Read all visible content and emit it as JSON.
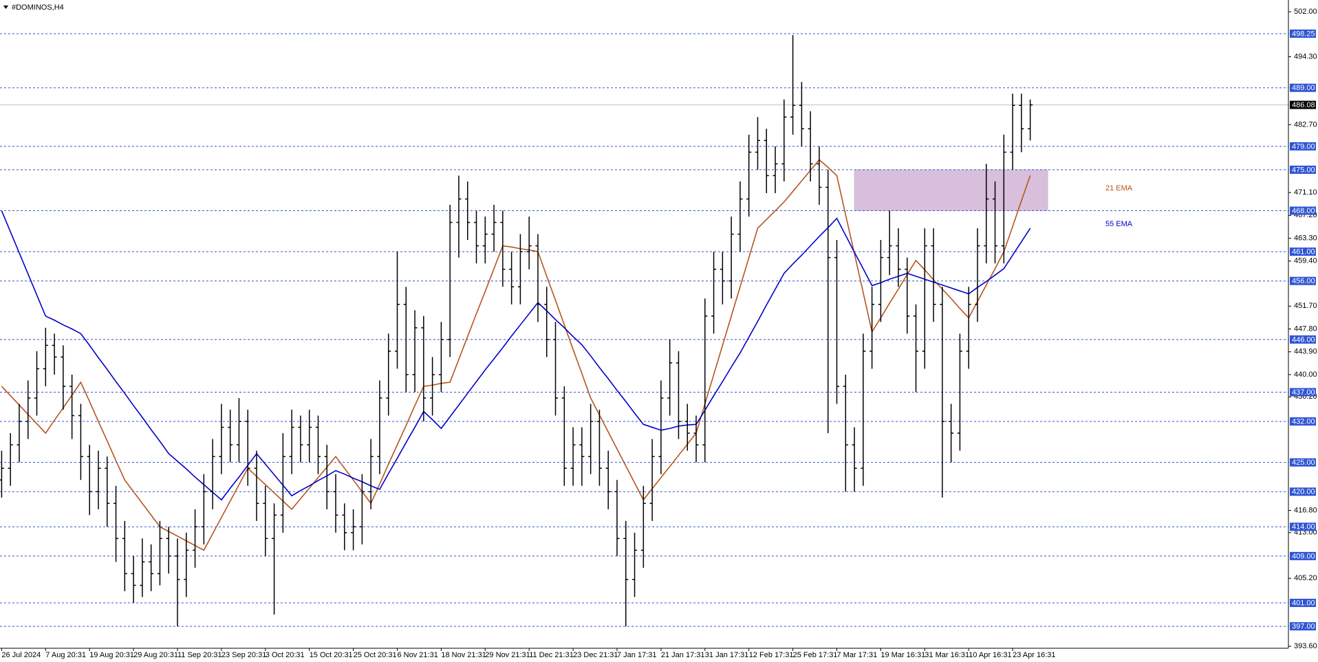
{
  "chart_data": {
    "type": "ohlc",
    "title": "#DOMINOS,H4",
    "categories": [
      "26 Jul 2024",
      null,
      null,
      null,
      null,
      "7 Aug 20:31",
      null,
      null,
      null,
      null,
      "19 Aug 20:31",
      null,
      null,
      null,
      null,
      "29 Aug 20:31",
      null,
      null,
      null,
      null,
      "11 Sep 20:31",
      null,
      null,
      null,
      null,
      "23 Sep 20:31",
      null,
      null,
      null,
      null,
      "3 Oct 20:31",
      null,
      null,
      null,
      null,
      "15 Oct 20:31",
      null,
      null,
      null,
      null,
      "25 Oct 20:31",
      null,
      null,
      null,
      null,
      "6 Nov 21:31",
      null,
      null,
      null,
      null,
      "18 Nov 21:31",
      null,
      null,
      null,
      null,
      "29 Nov 21:31",
      null,
      null,
      null,
      null,
      "11 Dec 21:31",
      null,
      null,
      null,
      null,
      "23 Dec 21:31",
      null,
      null,
      null,
      null,
      "7 Jan 17:31",
      null,
      null,
      null,
      null,
      "21 Jan 17:31",
      null,
      null,
      null,
      null,
      "31 Jan 17:31",
      null,
      null,
      null,
      null,
      "12 Feb 17:31",
      null,
      null,
      null,
      null,
      "25 Feb 17:31",
      null,
      null,
      null,
      null,
      "7 Mar 17:31",
      null,
      null,
      null,
      null,
      "19 Mar 16:31",
      null,
      null,
      null,
      null,
      "31 Mar 16:31",
      null,
      null,
      null,
      null,
      "10 Apr 16:31",
      null,
      null,
      null,
      null,
      "23 Apr 16:31",
      null,
      null
    ],
    "ohlc": [
      [
        422,
        427,
        419,
        424
      ],
      [
        424,
        430,
        421,
        428
      ],
      [
        428,
        435,
        425,
        432
      ],
      [
        432,
        439,
        429,
        436
      ],
      [
        436,
        444,
        433,
        441
      ],
      [
        441,
        448,
        438,
        445
      ],
      [
        445,
        447,
        440,
        443
      ],
      [
        443,
        445,
        434,
        438
      ],
      [
        438,
        440,
        429,
        433
      ],
      [
        433,
        435,
        422,
        426
      ],
      [
        426,
        428,
        416,
        420
      ],
      [
        420,
        427,
        417,
        424
      ],
      [
        424,
        426,
        414,
        418
      ],
      [
        418,
        421,
        408,
        412
      ],
      [
        412,
        415,
        403,
        406
      ],
      [
        406,
        409,
        401,
        404
      ],
      [
        404,
        412,
        402,
        408
      ],
      [
        408,
        411,
        403,
        406
      ],
      [
        406,
        415,
        404,
        412
      ],
      [
        412,
        414,
        406,
        409
      ],
      [
        409,
        412,
        397,
        405
      ],
      [
        405,
        413,
        402,
        410
      ],
      [
        410,
        417,
        407,
        414
      ],
      [
        414,
        423,
        411,
        420
      ],
      [
        420,
        429,
        417,
        426
      ],
      [
        426,
        435,
        423,
        431
      ],
      [
        431,
        434,
        425,
        428
      ],
      [
        428,
        436,
        425,
        432
      ],
      [
        432,
        434,
        421,
        424
      ],
      [
        424,
        427,
        415,
        418
      ],
      [
        418,
        421,
        409,
        412
      ],
      [
        412,
        418,
        399,
        416
      ],
      [
        416,
        430,
        413,
        426
      ],
      [
        426,
        434,
        423,
        431
      ],
      [
        431,
        433,
        425,
        428
      ],
      [
        428,
        434,
        425,
        431
      ],
      [
        431,
        433,
        423,
        426
      ],
      [
        426,
        428,
        417,
        420
      ],
      [
        420,
        423,
        413,
        416
      ],
      [
        416,
        418,
        410,
        413
      ],
      [
        413,
        417,
        410,
        414
      ],
      [
        414,
        423,
        411,
        420
      ],
      [
        420,
        429,
        417,
        426
      ],
      [
        426,
        439,
        423,
        436
      ],
      [
        436,
        447,
        433,
        444
      ],
      [
        444,
        461,
        441,
        452
      ],
      [
        452,
        455,
        437,
        440
      ],
      [
        440,
        451,
        437,
        448
      ],
      [
        448,
        450,
        432,
        436
      ],
      [
        436,
        443,
        433,
        440
      ],
      [
        440,
        449,
        437,
        446
      ],
      [
        446,
        469,
        443,
        466
      ],
      [
        466,
        474,
        460,
        470
      ],
      [
        470,
        473,
        463,
        466
      ],
      [
        466,
        468,
        459,
        462
      ],
      [
        462,
        467,
        459,
        464
      ],
      [
        464,
        469,
        461,
        466
      ],
      [
        466,
        468,
        455,
        458
      ],
      [
        458,
        461,
        452,
        455
      ],
      [
        455,
        464,
        452,
        461
      ],
      [
        461,
        467,
        458,
        462
      ],
      [
        462,
        464,
        449,
        452
      ],
      [
        452,
        455,
        443,
        446
      ],
      [
        446,
        449,
        433,
        436
      ],
      [
        436,
        438,
        421,
        424
      ],
      [
        424,
        431,
        421,
        428
      ],
      [
        428,
        431,
        421,
        426
      ],
      [
        426,
        435,
        423,
        432
      ],
      [
        432,
        434,
        421,
        424
      ],
      [
        424,
        427,
        417,
        420
      ],
      [
        420,
        422,
        409,
        412
      ],
      [
        412,
        415,
        397,
        405
      ],
      [
        405,
        413,
        402,
        410
      ],
      [
        410,
        421,
        407,
        418
      ],
      [
        418,
        429,
        415,
        426
      ],
      [
        426,
        439,
        423,
        436
      ],
      [
        436,
        446,
        433,
        442
      ],
      [
        442,
        444,
        429,
        432
      ],
      [
        432,
        435,
        427,
        430
      ],
      [
        430,
        433,
        425,
        428
      ],
      [
        428,
        453,
        425,
        450
      ],
      [
        450,
        461,
        447,
        458
      ],
      [
        458,
        461,
        452,
        456
      ],
      [
        456,
        467,
        453,
        464
      ],
      [
        464,
        473,
        461,
        470
      ],
      [
        470,
        481,
        467,
        478
      ],
      [
        478,
        484,
        475,
        480
      ],
      [
        480,
        482,
        471,
        474
      ],
      [
        474,
        479,
        471,
        476
      ],
      [
        476,
        487,
        473,
        484
      ],
      [
        484,
        498,
        481,
        486
      ],
      [
        486,
        490,
        479,
        482
      ],
      [
        482,
        485,
        473,
        476
      ],
      [
        476,
        479,
        469,
        472
      ],
      [
        472,
        475,
        430,
        460
      ],
      [
        460,
        463,
        435,
        438
      ],
      [
        438,
        440,
        420,
        428
      ],
      [
        428,
        431,
        420,
        424
      ],
      [
        424,
        447,
        421,
        444
      ],
      [
        444,
        455,
        441,
        452
      ],
      [
        452,
        463,
        449,
        460
      ],
      [
        460,
        468,
        457,
        462
      ],
      [
        462,
        465,
        455,
        458
      ],
      [
        458,
        460,
        447,
        450
      ],
      [
        450,
        452,
        437,
        444
      ],
      [
        444,
        465,
        441,
        462
      ],
      [
        462,
        465,
        449,
        452
      ],
      [
        452,
        455,
        419,
        432
      ],
      [
        432,
        435,
        425,
        430
      ],
      [
        430,
        447,
        427,
        444
      ],
      [
        444,
        455,
        441,
        452
      ],
      [
        452,
        465,
        449,
        462
      ],
      [
        462,
        476,
        459,
        470
      ],
      [
        470,
        473,
        459,
        462
      ],
      [
        462,
        481,
        459,
        478
      ],
      [
        478,
        488,
        475,
        486
      ],
      [
        486,
        488,
        478,
        482
      ],
      [
        482,
        487,
        480,
        486.08
      ]
    ],
    "bar_color": "#000000",
    "series": [
      {
        "name": "21 EMA",
        "color": "#b5541c",
        "values": [
          438,
          436.4,
          434.8,
          433.2,
          431.6,
          430,
          432.2,
          434.3,
          436.5,
          438.7,
          435.4,
          432,
          428.7,
          425.3,
          422,
          420,
          418,
          416,
          414,
          413.2,
          412.4,
          411.6,
          410.8,
          410,
          412.8,
          415.6,
          418.4,
          421.2,
          424,
          422.6,
          421.2,
          419.8,
          418.4,
          417,
          418.8,
          420.6,
          422.4,
          424.2,
          426,
          424,
          422,
          420,
          418,
          421.3,
          424.7,
          428,
          431.3,
          434.7,
          438,
          438.2,
          438.5,
          438.7,
          442.6,
          446.5,
          450.4,
          454.2,
          458.1,
          462,
          461.8,
          461.5,
          461.3,
          461,
          456.8,
          452.7,
          448.5,
          444.3,
          440.2,
          436,
          433.1,
          430.2,
          427.3,
          424.4,
          421.5,
          418.6,
          420.5,
          422.4,
          424.3,
          426.2,
          428.1,
          430,
          435,
          440,
          445,
          450,
          455,
          460,
          465,
          466.5,
          468,
          469.5,
          471.3,
          473.1,
          474.9,
          476.7,
          475.4,
          474,
          467.3,
          460.7,
          454,
          447.3,
          449.7,
          452.2,
          454.6,
          457.1,
          459.5,
          457.9,
          456.2,
          454.6,
          453,
          451.3,
          449.7,
          452.5,
          455.3,
          458.1,
          461,
          465.3,
          469.7,
          474
        ]
      },
      {
        "name": "55 EMA",
        "color": "#0000cc",
        "values": [
          468,
          464.4,
          460.8,
          457.2,
          453.6,
          450,
          449.3,
          448.5,
          447.8,
          447,
          445,
          442.9,
          440.9,
          438.8,
          436.8,
          434.7,
          432.7,
          430.6,
          428.6,
          426.5,
          425.2,
          423.9,
          422.5,
          421.2,
          419.9,
          418.6,
          420.6,
          422.5,
          424.5,
          426.5,
          424.7,
          422.9,
          421.1,
          419.3,
          420.2,
          421,
          421.9,
          422.7,
          423.6,
          423,
          422.3,
          421.7,
          421,
          420.4,
          423.1,
          425.7,
          428.4,
          431,
          433.7,
          432.3,
          430.8,
          432.8,
          434.8,
          436.8,
          438.8,
          440.8,
          442.7,
          444.6,
          446.6,
          448.5,
          450.4,
          452.3,
          450.9,
          449.4,
          448,
          446.5,
          445.1,
          443.2,
          441.2,
          439.3,
          437.3,
          435.4,
          433.4,
          431.5,
          431,
          430.5,
          430.8,
          431.2,
          431.4,
          431.5,
          433.9,
          436.4,
          438.8,
          441.3,
          443.7,
          446.4,
          449.1,
          451.9,
          454.6,
          457.3,
          458.9,
          460.4,
          462,
          463.6,
          465.1,
          466.7,
          463.8,
          460.9,
          458.1,
          455.2,
          455.7,
          456.3,
          456.8,
          457.3,
          456.8,
          456.3,
          455.8,
          455.3,
          454.8,
          454.3,
          453.8,
          454.9,
          455.9,
          457,
          458.1,
          460.4,
          462.7,
          465
        ]
      }
    ],
    "ylim": [
      393.25,
      504.0
    ],
    "yticks": [
      {
        "value": 502,
        "label": "502.00"
      },
      {
        "value": 494.3,
        "label": "494.30"
      },
      {
        "value": 482.7,
        "label": "482.70"
      },
      {
        "value": 471.1,
        "label": "471.10"
      },
      {
        "value": 467.2,
        "label": "467.20"
      },
      {
        "value": 463.3,
        "label": "463.30"
      },
      {
        "value": 459.4,
        "label": "459.40"
      },
      {
        "value": 451.7,
        "label": "451.70"
      },
      {
        "value": 447.8,
        "label": "447.80"
      },
      {
        "value": 443.9,
        "label": "443.90"
      },
      {
        "value": 440,
        "label": "440.00"
      },
      {
        "value": 436.2,
        "label": "436.20"
      },
      {
        "value": 416.8,
        "label": "416.80"
      },
      {
        "value": 413,
        "label": "413.00"
      },
      {
        "value": 405.2,
        "label": "405.20"
      },
      {
        "value": 393.6,
        "label": "393.60"
      }
    ],
    "levels": [
      {
        "value": 498.25,
        "label": "498.25"
      },
      {
        "value": 489,
        "label": "489.00"
      },
      {
        "value": 479,
        "label": "479.00"
      },
      {
        "value": 475,
        "label": "475.00"
      },
      {
        "value": 468,
        "label": "468.00"
      },
      {
        "value": 461,
        "label": "461.00"
      },
      {
        "value": 456,
        "label": "456.00"
      },
      {
        "value": 446,
        "label": "446.00"
      },
      {
        "value": 437,
        "label": "437.00"
      },
      {
        "value": 432,
        "label": "432.00"
      },
      {
        "value": 425,
        "label": "425.00"
      },
      {
        "value": 420,
        "label": "420.00"
      },
      {
        "value": 414,
        "label": "414.00"
      },
      {
        "value": 409,
        "label": "409.00"
      },
      {
        "value": 401,
        "label": "401.00"
      },
      {
        "value": 397,
        "label": "397.00"
      }
    ],
    "level_color": "#2f55d4",
    "current_price": {
      "value": 486.08,
      "label": "486.08"
    },
    "zone": {
      "x": [
        97,
        119
      ],
      "y": [
        468,
        475
      ],
      "color": "#d8bfdb"
    }
  }
}
